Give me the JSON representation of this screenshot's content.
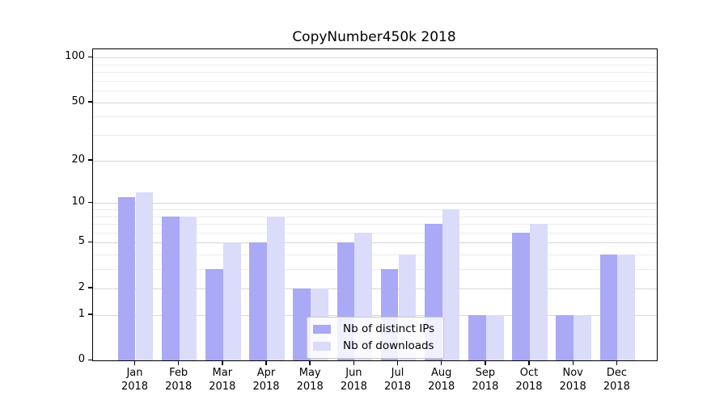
{
  "title": "CopyNumber450k 2018",
  "colors": {
    "series_distinct_ips": "#a9a9f6",
    "series_downloads": "#dbdbfa",
    "major_grid": "#d6d6d6",
    "minor_grid": "#ececec",
    "axis": "#000000"
  },
  "chart_data": {
    "type": "bar",
    "title": "CopyNumber450k 2018",
    "categories": [
      "Jan",
      "Feb",
      "Mar",
      "Apr",
      "May",
      "Jun",
      "Jul",
      "Aug",
      "Sep",
      "Oct",
      "Nov",
      "Dec"
    ],
    "category_year_label": "2018",
    "series": [
      {
        "name": "Nb of distinct IPs",
        "color": "#a9a9f6",
        "values": [
          11,
          8,
          3,
          5,
          2,
          5,
          3,
          7,
          1,
          6,
          1,
          4
        ]
      },
      {
        "name": "Nb of downloads",
        "color": "#dbdbfa",
        "values": [
          12,
          8,
          5,
          8,
          2,
          6,
          4,
          9,
          1,
          7,
          1,
          4
        ]
      }
    ],
    "xlabel": "",
    "ylabel": "",
    "y_axis": {
      "scale": "log1p",
      "tick_values": [
        100,
        50,
        20,
        10,
        5,
        2,
        1,
        0
      ],
      "tick_labels": [
        "100",
        "50",
        "20",
        "10",
        "5",
        "2",
        "1",
        "0"
      ],
      "minor_gridline_values": [
        3,
        4,
        6,
        7,
        8,
        9,
        30,
        40,
        60,
        70,
        80,
        90
      ],
      "range": [
        0,
        113
      ]
    },
    "grid": true,
    "legend_position": "lower-center-inside"
  }
}
